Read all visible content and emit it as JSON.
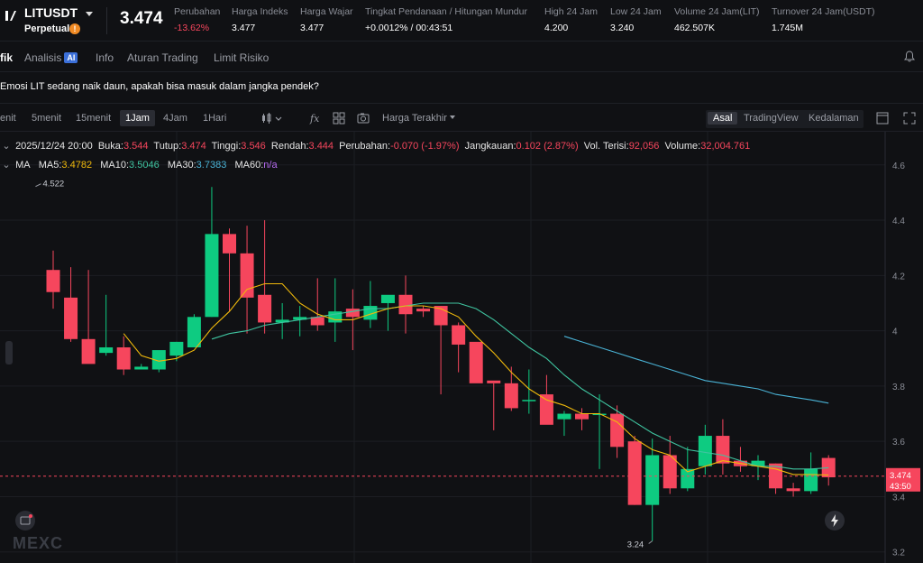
{
  "ticker": {
    "symbol": "LITUSDT",
    "contract_type": "Perpetual",
    "warn_icon": "!",
    "last_price": "3.474",
    "stats": [
      {
        "label": "Perubahan",
        "value": "-13.62%",
        "color": "red"
      },
      {
        "label": "Harga Indeks",
        "value": "3.477"
      },
      {
        "label": "Harga Wajar",
        "value": "3.477"
      },
      {
        "label": "Tingkat Pendanaan / Hitungan Mundur",
        "value": "+0.0012% / 00:43:51"
      },
      {
        "label": "High 24 Jam",
        "value": "4.200"
      },
      {
        "label": "Low 24 Jam",
        "value": "3.240"
      },
      {
        "label": "Volume 24 Jam(LIT)",
        "value": "462.507K"
      },
      {
        "label": "Turnover 24 Jam(USDT)",
        "value": "1.745M"
      }
    ]
  },
  "tabs": {
    "grafik": "fik",
    "analisis": "Analisis",
    "ai_badge": "AI",
    "info": "Info",
    "aturan": "Aturan Trading",
    "limit": "Limit Risiko"
  },
  "question": "Emosi LIT sedang naik daun, apakah bisa masuk dalam jangka pendek?",
  "toolbar": {
    "tf_1m": "enit",
    "tf_5m": "5menit",
    "tf_15m": "15menit",
    "tf_1h": "1Jam",
    "tf_4h": "4Jam",
    "tf_1d": "1Hari",
    "latest_price": "Harga Terakhir",
    "view_original": "Asal",
    "view_tradingview": "TradingView",
    "view_depth": "Kedalaman"
  },
  "info": {
    "datetime": "2025/12/24 20:00",
    "open_label": "Buka:",
    "open": "3.544",
    "close_label": "Tutup:",
    "close": "3.474",
    "high_label": "Tinggi:",
    "high": "3.546",
    "low_label": "Rendah:",
    "low": "3.444",
    "change_label": "Perubahan:",
    "change": "-0.070 (-1.97%)",
    "range_label": "Jangkauan:",
    "range": "0.102 (2.87%)",
    "filled_label": "Vol. Terisi:",
    "filled": "92,056",
    "volume_label": "Volume:",
    "volume": "32,004.761"
  },
  "ma": {
    "label": "MA",
    "ma5_label": "MA5:",
    "ma5": "3.4782",
    "ma10_label": "MA10:",
    "ma10": "3.5046",
    "ma30_label": "MA30:",
    "ma30": "3.7383",
    "ma60_label": "MA60:",
    "ma60": "n/a"
  },
  "price_tag": "3.474",
  "countdown_tag": "43:50",
  "watermark": "MEXC",
  "colors": {
    "up": "#0ecb81",
    "down": "#f6465d",
    "ma5": "#f0b90b",
    "ma10": "#3fc4a0",
    "ma30": "#4ab3d6",
    "ma60": "#b76cf2"
  },
  "chart_data": {
    "type": "candlestick",
    "interval": "1Jam",
    "ylim": [
      3.16,
      4.72
    ],
    "y_ticks": [
      "4.6",
      "4.4",
      "4.2",
      "4",
      "3.8",
      "3.6",
      "3.4",
      "3.2"
    ],
    "y_tick_values": [
      4.6,
      4.4,
      4.2,
      4.0,
      3.8,
      3.6,
      3.4,
      3.2
    ],
    "high_annotation": "4.522",
    "low_annotation": "3.24",
    "annotation_values": {
      "high": 4.522,
      "low": 3.24
    },
    "last_price": 3.474,
    "candles": [
      {
        "o": 4.22,
        "h": 4.29,
        "l": 4.08,
        "c": 4.14
      },
      {
        "o": 4.12,
        "h": 4.23,
        "l": 3.96,
        "c": 3.97
      },
      {
        "o": 3.97,
        "h": 4.22,
        "l": 3.89,
        "c": 3.88
      },
      {
        "o": 3.92,
        "h": 4.13,
        "l": 3.91,
        "c": 3.94
      },
      {
        "o": 3.94,
        "h": 3.98,
        "l": 3.84,
        "c": 3.86
      },
      {
        "o": 3.86,
        "h": 3.88,
        "l": 3.86,
        "c": 3.87
      },
      {
        "o": 3.86,
        "h": 3.92,
        "l": 3.85,
        "c": 3.93
      },
      {
        "o": 3.91,
        "h": 3.96,
        "l": 3.89,
        "c": 3.96
      },
      {
        "o": 3.94,
        "h": 4.06,
        "l": 3.94,
        "c": 4.05
      },
      {
        "o": 4.05,
        "h": 4.52,
        "l": 4.05,
        "c": 4.35
      },
      {
        "o": 4.35,
        "h": 4.37,
        "l": 4.07,
        "c": 4.28
      },
      {
        "o": 4.28,
        "h": 4.38,
        "l": 3.99,
        "c": 4.12
      },
      {
        "o": 4.13,
        "h": 4.4,
        "l": 3.99,
        "c": 4.03
      },
      {
        "o": 4.03,
        "h": 4.1,
        "l": 3.97,
        "c": 4.04
      },
      {
        "o": 4.04,
        "h": 4.09,
        "l": 3.98,
        "c": 4.05
      },
      {
        "o": 4.05,
        "h": 4.19,
        "l": 4.0,
        "c": 4.02
      },
      {
        "o": 4.03,
        "h": 4.19,
        "l": 3.96,
        "c": 4.07
      },
      {
        "o": 4.08,
        "h": 4.15,
        "l": 3.93,
        "c": 4.05
      },
      {
        "o": 4.04,
        "h": 4.18,
        "l": 4.01,
        "c": 4.09
      },
      {
        "o": 4.1,
        "h": 4.12,
        "l": 4.0,
        "c": 4.13
      },
      {
        "o": 4.13,
        "h": 4.2,
        "l": 3.99,
        "c": 4.06
      },
      {
        "o": 4.08,
        "h": 4.09,
        "l": 4.05,
        "c": 4.07
      },
      {
        "o": 4.09,
        "h": 4.09,
        "l": 3.77,
        "c": 4.02
      },
      {
        "o": 4.02,
        "h": 4.03,
        "l": 3.85,
        "c": 3.95
      },
      {
        "o": 3.96,
        "h": 3.95,
        "l": 3.82,
        "c": 3.81
      },
      {
        "o": 3.82,
        "h": 3.81,
        "l": 3.64,
        "c": 3.81
      },
      {
        "o": 3.81,
        "h": 3.87,
        "l": 3.71,
        "c": 3.72
      },
      {
        "o": 3.75,
        "h": 3.86,
        "l": 3.7,
        "c": 3.75
      },
      {
        "o": 3.77,
        "h": 3.84,
        "l": 3.67,
        "c": 3.66
      },
      {
        "o": 3.68,
        "h": 3.71,
        "l": 3.62,
        "c": 3.7
      },
      {
        "o": 3.7,
        "h": 3.72,
        "l": 3.64,
        "c": 3.68
      },
      {
        "o": 3.7,
        "h": 3.77,
        "l": 3.5,
        "c": 3.7
      },
      {
        "o": 3.7,
        "h": 3.73,
        "l": 3.54,
        "c": 3.58
      },
      {
        "o": 3.6,
        "h": 3.62,
        "l": 3.37,
        "c": 3.37
      },
      {
        "o": 3.37,
        "h": 3.61,
        "l": 3.24,
        "c": 3.55
      },
      {
        "o": 3.55,
        "h": 3.62,
        "l": 3.41,
        "c": 3.43
      },
      {
        "o": 3.43,
        "h": 3.58,
        "l": 3.42,
        "c": 3.5
      },
      {
        "o": 3.51,
        "h": 3.66,
        "l": 3.48,
        "c": 3.62
      },
      {
        "o": 3.62,
        "h": 3.68,
        "l": 3.48,
        "c": 3.52
      },
      {
        "o": 3.53,
        "h": 3.58,
        "l": 3.49,
        "c": 3.51
      },
      {
        "o": 3.51,
        "h": 3.55,
        "l": 3.46,
        "c": 3.53
      },
      {
        "o": 3.52,
        "h": 3.52,
        "l": 3.41,
        "c": 3.43
      },
      {
        "o": 3.43,
        "h": 3.45,
        "l": 3.4,
        "c": 3.42
      },
      {
        "o": 3.42,
        "h": 3.56,
        "l": 3.41,
        "c": 3.5
      },
      {
        "o": 3.54,
        "h": 3.55,
        "l": 3.44,
        "c": 3.47
      }
    ],
    "ma5": [
      null,
      null,
      null,
      null,
      3.99,
      3.91,
      3.89,
      3.9,
      3.93,
      4.01,
      4.07,
      4.15,
      4.17,
      4.17,
      4.1,
      4.06,
      4.04,
      4.04,
      4.06,
      4.08,
      4.09,
      4.09,
      4.08,
      4.05,
      3.98,
      3.92,
      3.85,
      3.79,
      3.75,
      3.73,
      3.7,
      3.7,
      3.67,
      3.61,
      3.57,
      3.55,
      3.49,
      3.51,
      3.53,
      3.52,
      3.51,
      3.5,
      3.48,
      3.48,
      3.478
    ],
    "ma10": [
      null,
      null,
      null,
      null,
      null,
      null,
      null,
      null,
      null,
      3.97,
      3.99,
      4.0,
      4.02,
      4.03,
      4.04,
      4.05,
      4.06,
      4.07,
      4.08,
      4.08,
      4.09,
      4.1,
      4.1,
      4.1,
      4.08,
      4.04,
      3.99,
      3.94,
      3.9,
      3.84,
      3.79,
      3.75,
      3.71,
      3.67,
      3.63,
      3.6,
      3.57,
      3.56,
      3.55,
      3.53,
      3.51,
      3.51,
      3.5,
      3.5,
      3.5046
    ],
    "ma30": [
      null,
      null,
      null,
      null,
      null,
      null,
      null,
      null,
      null,
      null,
      null,
      null,
      null,
      null,
      null,
      null,
      null,
      null,
      null,
      null,
      null,
      null,
      null,
      null,
      null,
      null,
      null,
      null,
      null,
      3.98,
      3.96,
      3.94,
      3.92,
      3.9,
      3.88,
      3.86,
      3.84,
      3.82,
      3.81,
      3.8,
      3.79,
      3.77,
      3.76,
      3.75,
      3.7383
    ]
  }
}
